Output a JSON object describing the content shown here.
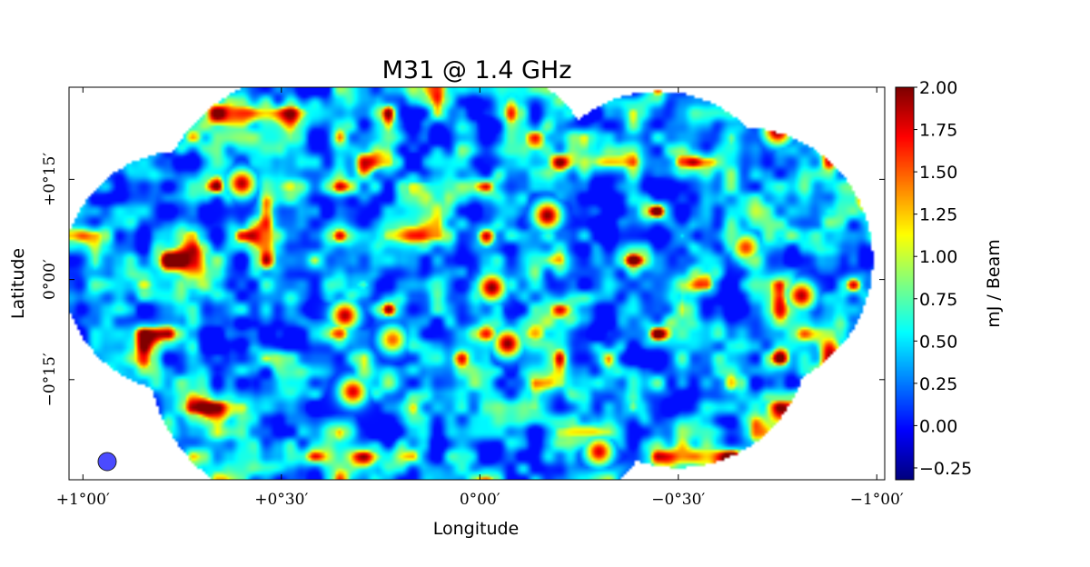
{
  "chart_data": {
    "type": "heatmap",
    "title": "M31 @ 1.4 GHz",
    "xlabel": "Longitude",
    "ylabel": "Latitude",
    "x_ticks": [
      "+1°00′",
      "+0°30′",
      "0°00′",
      "−0°30′",
      "−1°00′"
    ],
    "x_tick_values_deg": [
      1.0,
      0.5,
      0.0,
      -0.5,
      -1.0
    ],
    "y_ticks": [
      "+0°15′",
      "0°00′",
      "−0°15′"
    ],
    "y_tick_values_deg": [
      0.25,
      0.0,
      -0.25
    ],
    "x_range_deg": [
      1.035,
      -1.02
    ],
    "y_range_deg": [
      0.48,
      -0.5
    ],
    "colorbar": {
      "label": "mJ / Beam",
      "colormap": "jet",
      "ticks": [
        "2.00",
        "1.75",
        "1.50",
        "1.25",
        "1.00",
        "0.75",
        "0.50",
        "0.25",
        "0.00",
        "−0.25"
      ],
      "tick_values": [
        2.0,
        1.75,
        1.5,
        1.25,
        1.0,
        0.75,
        0.5,
        0.25,
        0.0,
        -0.25
      ],
      "range": [
        -0.32,
        2.0
      ]
    },
    "beam_color": "#4b4bff",
    "grid": false,
    "mosaic_pointings_deg": [
      {
        "x": 0.75,
        "y": 0.02,
        "r": 0.3
      },
      {
        "x": 0.42,
        "y": 0.11,
        "r": 0.41
      },
      {
        "x": 0.43,
        "y": -0.17,
        "r": 0.41
      },
      {
        "x": 0.05,
        "y": 0.18,
        "r": 0.37
      },
      {
        "x": -0.07,
        "y": -0.22,
        "r": 0.4
      },
      {
        "x": -0.45,
        "y": 0.15,
        "r": 0.32
      },
      {
        "x": -0.66,
        "y": 0.05,
        "r": 0.33
      },
      {
        "x": -0.5,
        "y": -0.14,
        "r": 0.33
      }
    ],
    "bright_sources_deg": [
      {
        "x": -0.17,
        "y": 0.16,
        "v": 2.0
      },
      {
        "x": -0.03,
        "y": -0.02,
        "v": 2.0
      },
      {
        "x": -0.07,
        "y": -0.16,
        "v": 2.0
      },
      {
        "x": 0.34,
        "y": -0.09,
        "v": 1.9
      },
      {
        "x": 0.6,
        "y": 0.24,
        "v": 1.9
      },
      {
        "x": -0.75,
        "y": 0.37,
        "v": 2.0
      },
      {
        "x": -0.98,
        "y": 0.2,
        "v": 2.0
      },
      {
        "x": -0.81,
        "y": -0.04,
        "v": 1.9
      },
      {
        "x": 0.32,
        "y": -0.28,
        "v": 1.8
      },
      {
        "x": -0.3,
        "y": -0.43,
        "v": 1.8
      },
      {
        "x": -0.67,
        "y": 0.08,
        "v": 1.6
      },
      {
        "x": 0.22,
        "y": -0.15,
        "v": 1.5
      }
    ]
  }
}
